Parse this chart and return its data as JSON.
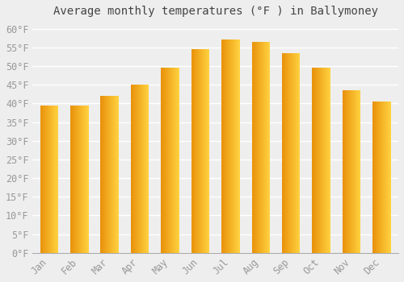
{
  "title": "Average monthly temperatures (°F ) in Ballymoney",
  "months": [
    "Jan",
    "Feb",
    "Mar",
    "Apr",
    "May",
    "Jun",
    "Jul",
    "Aug",
    "Sep",
    "Oct",
    "Nov",
    "Dec"
  ],
  "values": [
    39.5,
    39.5,
    42,
    45,
    49.5,
    54.5,
    57,
    56.5,
    53.5,
    49.5,
    43.5,
    40.5
  ],
  "bar_color": "#FFA500",
  "bar_color_light": "#FFD040",
  "ylim": [
    0,
    62
  ],
  "yticks": [
    0,
    5,
    10,
    15,
    20,
    25,
    30,
    35,
    40,
    45,
    50,
    55,
    60
  ],
  "background_color": "#eeeeee",
  "grid_color": "#ffffff",
  "title_fontsize": 10,
  "tick_fontsize": 8.5,
  "tick_color": "#999999",
  "font_family": "monospace"
}
